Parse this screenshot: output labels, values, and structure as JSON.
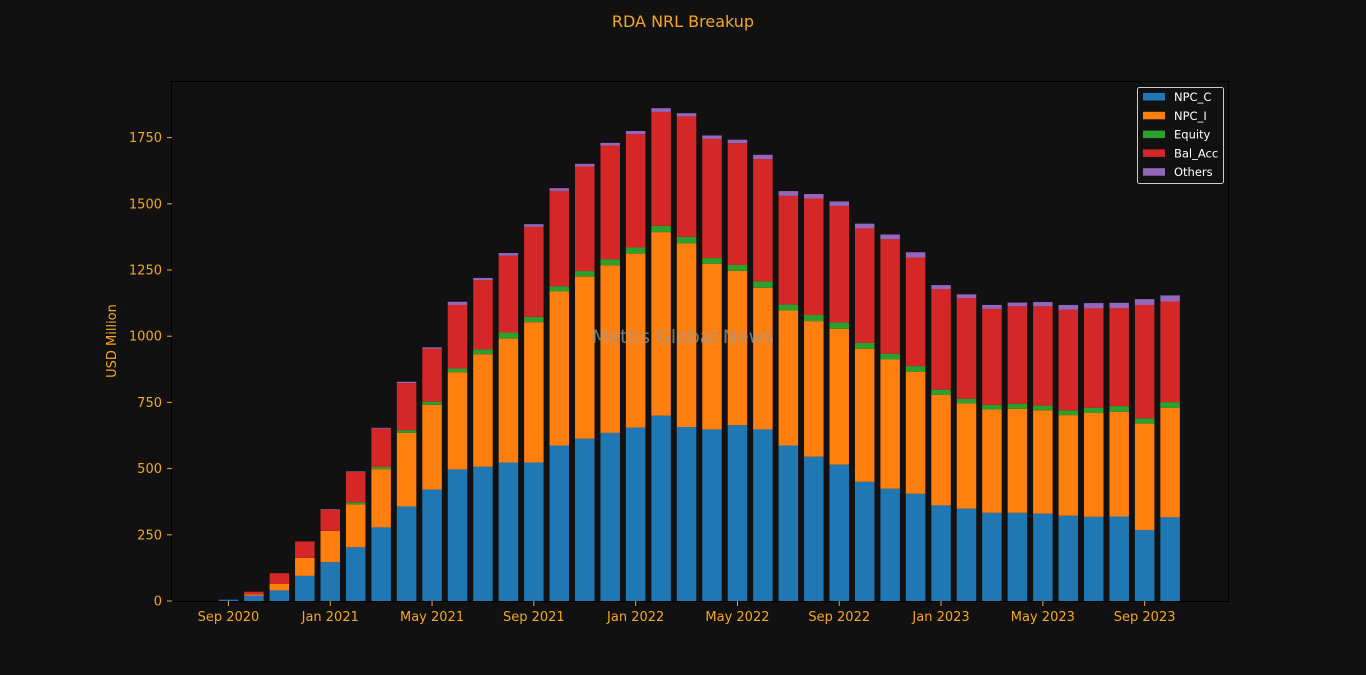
{
  "colors": {
    "background": "#111111",
    "text": "#f5a623",
    "axis": "#000000",
    "legend_text": "#ffffff",
    "watermark": "#9a9a9a",
    "NPC_C": "#1f77b4",
    "NPC_I": "#ff7f0e",
    "Equity": "#2ca02c",
    "Bal_Acc": "#d62728",
    "Others": "#9467bd"
  },
  "watermark": "Mettis Global News",
  "chart_data": {
    "type": "bar",
    "stacked": true,
    "title": "RDA NRL Breakup",
    "xlabel": "",
    "ylabel": "USD Million",
    "ylim": [
      0,
      1960
    ],
    "yticks": [
      0,
      250,
      500,
      750,
      1000,
      1250,
      1500,
      1750
    ],
    "grid": false,
    "legend_position": "top-right",
    "categories": [
      "Aug 2020",
      "Sep 2020",
      "Oct 2020",
      "Nov 2020",
      "Dec 2020",
      "Jan 2021",
      "Feb 2021",
      "Mar 2021",
      "Apr 2021",
      "May 2021",
      "Jun 2021",
      "Jul 2021",
      "Aug 2021",
      "Sep 2021",
      "Oct 2021",
      "Nov 2021",
      "Dec 2021",
      "Jan 2022",
      "Feb 2022",
      "Mar 2022",
      "Apr 2022",
      "May 2022",
      "Jun 2022",
      "Jul 2022",
      "Aug 2022",
      "Sep 2022",
      "Oct 2022",
      "Nov 2022",
      "Dec 2022",
      "Jan 2023",
      "Feb 2023",
      "Mar 2023",
      "Apr 2023",
      "May 2023",
      "Jun 2023",
      "Jul 2023",
      "Aug 2023",
      "Sep 2023",
      "Oct 2023"
    ],
    "xticks": [
      {
        "category": "Sep 2020",
        "label": "Sep 2020"
      },
      {
        "category": "Jan 2021",
        "label": "Jan 2021"
      },
      {
        "category": "May 2021",
        "label": "May 2021"
      },
      {
        "category": "Sep 2021",
        "label": "Sep 2021"
      },
      {
        "category": "Jan 2022",
        "label": "Jan 2022"
      },
      {
        "category": "May 2022",
        "label": "May 2022"
      },
      {
        "category": "Sep 2022",
        "label": "Sep 2022"
      },
      {
        "category": "Jan 2023",
        "label": "Jan 2023"
      },
      {
        "category": "May 2023",
        "label": "May 2023"
      },
      {
        "category": "Sep 2023",
        "label": "Sep 2023"
      }
    ],
    "series": [
      {
        "name": "NPC_C",
        "values": [
          0,
          5,
          20,
          40,
          95,
          147,
          203,
          278,
          357,
          421,
          497,
          507,
          523,
          523,
          587,
          613,
          635,
          655,
          700,
          657,
          648,
          664,
          648,
          587,
          545,
          515,
          450,
          424,
          405,
          361,
          349,
          333,
          333,
          330,
          322,
          318,
          319,
          268,
          316
        ]
      },
      {
        "name": "NPC_I",
        "values": [
          0,
          0,
          5,
          25,
          68,
          118,
          162,
          220,
          278,
          320,
          367,
          425,
          468,
          530,
          582,
          612,
          633,
          657,
          693,
          693,
          625,
          583,
          535,
          510,
          512,
          513,
          503,
          488,
          460,
          417,
          397,
          390,
          393,
          390,
          380,
          392,
          395,
          402,
          413
        ]
      },
      {
        "name": "Equity",
        "values": [
          0,
          0,
          0,
          0,
          0,
          0,
          8,
          8,
          10,
          12,
          14,
          18,
          23,
          20,
          20,
          21,
          22,
          23,
          24,
          25,
          22,
          22,
          24,
          23,
          23,
          24,
          22,
          22,
          22,
          20,
          18,
          18,
          19,
          18,
          18,
          20,
          22,
          20,
          22
        ]
      },
      {
        "name": "Bal_Acc",
        "values": [
          0,
          0,
          10,
          40,
          62,
          80,
          115,
          145,
          178,
          200,
          240,
          262,
          290,
          340,
          360,
          395,
          430,
          428,
          430,
          455,
          450,
          460,
          462,
          410,
          440,
          440,
          432,
          432,
          410,
          380,
          380,
          362,
          368,
          375,
          380,
          375,
          370,
          428,
          380
        ]
      },
      {
        "name": "Others",
        "values": [
          0,
          0,
          0,
          0,
          0,
          2,
          2,
          3,
          5,
          5,
          12,
          8,
          10,
          10,
          10,
          10,
          10,
          12,
          14,
          12,
          13,
          13,
          16,
          18,
          17,
          17,
          18,
          18,
          20,
          15,
          14,
          15,
          14,
          16,
          18,
          20,
          20,
          22,
          23
        ]
      }
    ]
  }
}
